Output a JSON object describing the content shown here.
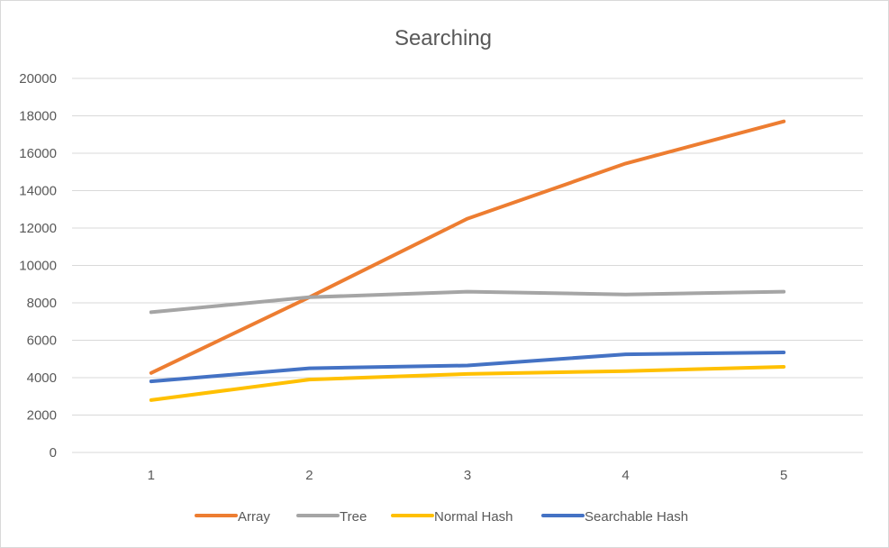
{
  "chart_data": {
    "type": "line",
    "title": "Searching",
    "xlabel": "",
    "ylabel": "",
    "categories": [
      "1",
      "2",
      "3",
      "4",
      "5"
    ],
    "ylim": [
      0,
      20000
    ],
    "yticks": [
      "0",
      "2000",
      "4000",
      "6000",
      "8000",
      "10000",
      "12000",
      "14000",
      "16000",
      "18000",
      "20000"
    ],
    "grid": true,
    "legend_position": "bottom",
    "series": [
      {
        "name": "Array",
        "color": "#ED7D31",
        "values": [
          4250,
          8300,
          12500,
          15450,
          17700
        ]
      },
      {
        "name": "Tree",
        "color": "#A5A5A5",
        "values": [
          7500,
          8300,
          8600,
          8450,
          8600
        ]
      },
      {
        "name": "Normal Hash",
        "color": "#FFC000",
        "values": [
          2800,
          3900,
          4200,
          4350,
          4580
        ]
      },
      {
        "name": "Searchable Hash",
        "color": "#4472C4",
        "values": [
          3800,
          4500,
          4650,
          5250,
          5350
        ]
      }
    ]
  }
}
